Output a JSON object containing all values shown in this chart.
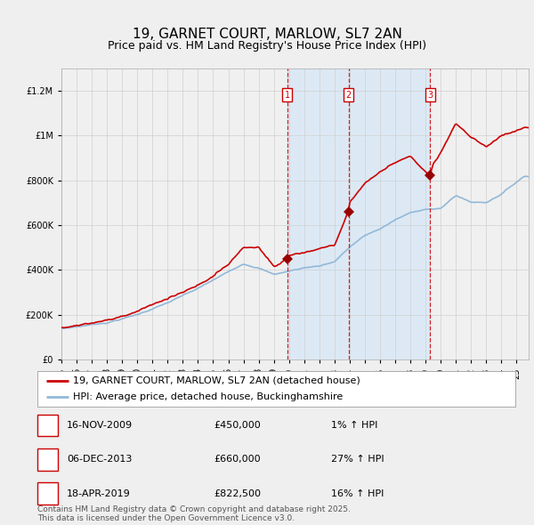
{
  "title": "19, GARNET COURT, MARLOW, SL7 2AN",
  "subtitle": "Price paid vs. HM Land Registry's House Price Index (HPI)",
  "ylim": [
    0,
    1300000
  ],
  "xlim_start": 1995.0,
  "xlim_end": 2025.8,
  "hpi_color": "#92b8d8",
  "price_color": "#cc0000",
  "sale_marker_color": "#990000",
  "vline_color": "#cc0000",
  "shade_color": "#dce9f5",
  "legend_label_price": "19, GARNET COURT, MARLOW, SL7 2AN (detached house)",
  "legend_label_hpi": "HPI: Average price, detached house, Buckinghamshire",
  "sales": [
    {
      "num": 1,
      "date_label": "16-NOV-2009",
      "price": 450000,
      "pct": "1%",
      "year": 2009.88
    },
    {
      "num": 2,
      "date_label": "06-DEC-2013",
      "price": 660000,
      "pct": "27%",
      "year": 2013.92
    },
    {
      "num": 3,
      "date_label": "18-APR-2019",
      "price": 822500,
      "pct": "16%",
      "year": 2019.3
    }
  ],
  "footnote": "Contains HM Land Registry data © Crown copyright and database right 2025.\nThis data is licensed under the Open Government Licence v3.0.",
  "background_color": "#efefef",
  "plot_bg_color": "#f0f0f0",
  "grid_color": "#d0d0d0",
  "title_fontsize": 11,
  "subtitle_fontsize": 9,
  "tick_fontsize": 7,
  "legend_fontsize": 8,
  "footnote_fontsize": 6.5,
  "yticks": [
    0,
    200000,
    400000,
    600000,
    800000,
    1000000,
    1200000
  ],
  "ytick_labels": [
    "£0",
    "£200K",
    "£400K",
    "£600K",
    "£800K",
    "£1M",
    "£1.2M"
  ]
}
